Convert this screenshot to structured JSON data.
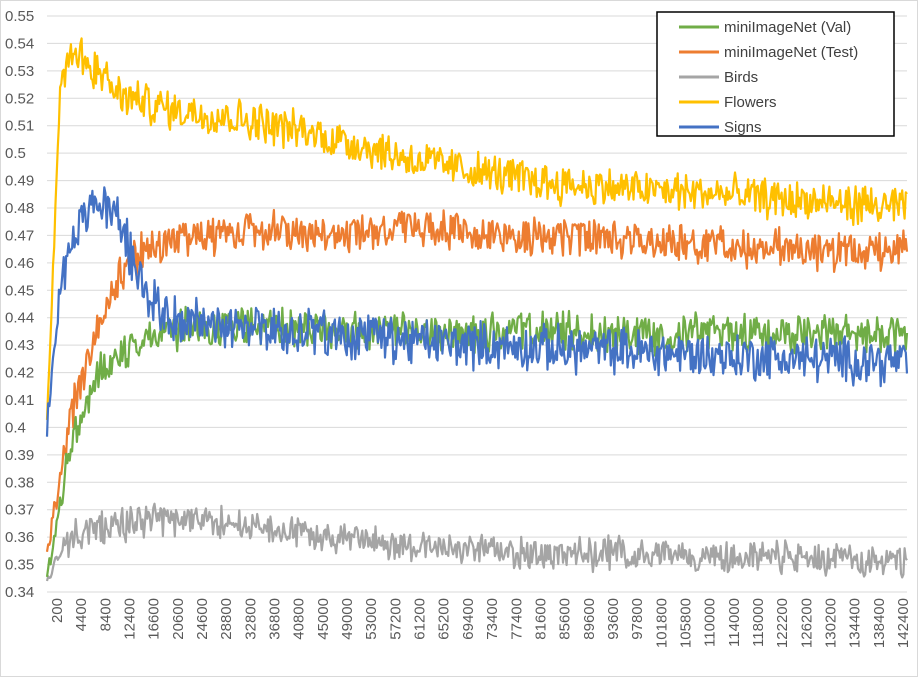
{
  "chart_data": {
    "type": "line",
    "title": "",
    "xlabel": "",
    "ylabel": "",
    "ylim": [
      0.34,
      0.55
    ],
    "y_ticks": [
      "0.34",
      "0.35",
      "0.36",
      "0.37",
      "0.38",
      "0.39",
      "0.4",
      "0.41",
      "0.42",
      "0.43",
      "0.44",
      "0.45",
      "0.46",
      "0.47",
      "0.48",
      "0.49",
      "0.5",
      "0.51",
      "0.52",
      "0.53",
      "0.54",
      "0.55"
    ],
    "x_ticks": [
      "200",
      "4400",
      "8400",
      "12400",
      "16600",
      "20600",
      "24600",
      "28800",
      "32800",
      "36800",
      "40800",
      "45000",
      "49000",
      "53000",
      "57200",
      "61200",
      "65200",
      "69400",
      "73400",
      "77400",
      "81600",
      "85600",
      "89600",
      "93600",
      "97800",
      "101800",
      "105800",
      "110000",
      "114000",
      "118000",
      "122200",
      "126200",
      "130200",
      "134400",
      "138400",
      "142400"
    ],
    "xlim": [
      200,
      145000
    ],
    "legend_position": "top-right",
    "grid": true,
    "series": [
      {
        "name": "miniImageNet (Val)",
        "color": "#70ad47",
        "keypoints": [
          [
            200,
            0.345
          ],
          [
            4400,
            0.395
          ],
          [
            8400,
            0.418
          ],
          [
            12400,
            0.428
          ],
          [
            16600,
            0.432
          ],
          [
            20600,
            0.435
          ],
          [
            28800,
            0.437
          ],
          [
            40800,
            0.436
          ],
          [
            53000,
            0.435
          ],
          [
            65200,
            0.434
          ],
          [
            81600,
            0.435
          ],
          [
            97800,
            0.434
          ],
          [
            114000,
            0.435
          ],
          [
            130200,
            0.434
          ],
          [
            145000,
            0.434
          ]
        ],
        "noise": 0.006
      },
      {
        "name": "miniImageNet (Test)",
        "color": "#ed7d31",
        "keypoints": [
          [
            200,
            0.355
          ],
          [
            4400,
            0.405
          ],
          [
            8400,
            0.435
          ],
          [
            12400,
            0.455
          ],
          [
            16600,
            0.465
          ],
          [
            24600,
            0.47
          ],
          [
            36800,
            0.472
          ],
          [
            49000,
            0.47
          ],
          [
            61200,
            0.473
          ],
          [
            73400,
            0.471
          ],
          [
            89600,
            0.469
          ],
          [
            105800,
            0.468
          ],
          [
            122200,
            0.465
          ],
          [
            138400,
            0.464
          ],
          [
            145000,
            0.465
          ]
        ],
        "noise": 0.006
      },
      {
        "name": "Birds",
        "color": "#a5a5a5",
        "keypoints": [
          [
            200,
            0.345
          ],
          [
            4400,
            0.36
          ],
          [
            8400,
            0.363
          ],
          [
            16600,
            0.366
          ],
          [
            24600,
            0.367
          ],
          [
            32800,
            0.364
          ],
          [
            45000,
            0.361
          ],
          [
            57200,
            0.358
          ],
          [
            69400,
            0.356
          ],
          [
            81600,
            0.354
          ],
          [
            97800,
            0.354
          ],
          [
            114000,
            0.353
          ],
          [
            130200,
            0.352
          ],
          [
            145000,
            0.351
          ]
        ],
        "noise": 0.005
      },
      {
        "name": "Flowers",
        "color": "#ffc000",
        "keypoints": [
          [
            200,
            0.4
          ],
          [
            2400,
            0.525
          ],
          [
            4400,
            0.538
          ],
          [
            8400,
            0.53
          ],
          [
            12400,
            0.521
          ],
          [
            20600,
            0.516
          ],
          [
            28800,
            0.514
          ],
          [
            36800,
            0.511
          ],
          [
            45000,
            0.507
          ],
          [
            53000,
            0.503
          ],
          [
            61200,
            0.498
          ],
          [
            73400,
            0.493
          ],
          [
            85600,
            0.489
          ],
          [
            97800,
            0.487
          ],
          [
            114000,
            0.485
          ],
          [
            130200,
            0.482
          ],
          [
            145000,
            0.48
          ]
        ],
        "noise": 0.006
      },
      {
        "name": "Signs",
        "color": "#4472c4",
        "keypoints": [
          [
            200,
            0.4
          ],
          [
            2400,
            0.45
          ],
          [
            4400,
            0.47
          ],
          [
            8400,
            0.482
          ],
          [
            12400,
            0.475
          ],
          [
            16600,
            0.45
          ],
          [
            20600,
            0.44
          ],
          [
            28800,
            0.437
          ],
          [
            40800,
            0.435
          ],
          [
            53000,
            0.433
          ],
          [
            65200,
            0.431
          ],
          [
            81600,
            0.429
          ],
          [
            97800,
            0.428
          ],
          [
            114000,
            0.426
          ],
          [
            130200,
            0.425
          ],
          [
            145000,
            0.424
          ]
        ],
        "noise": 0.007
      }
    ]
  }
}
